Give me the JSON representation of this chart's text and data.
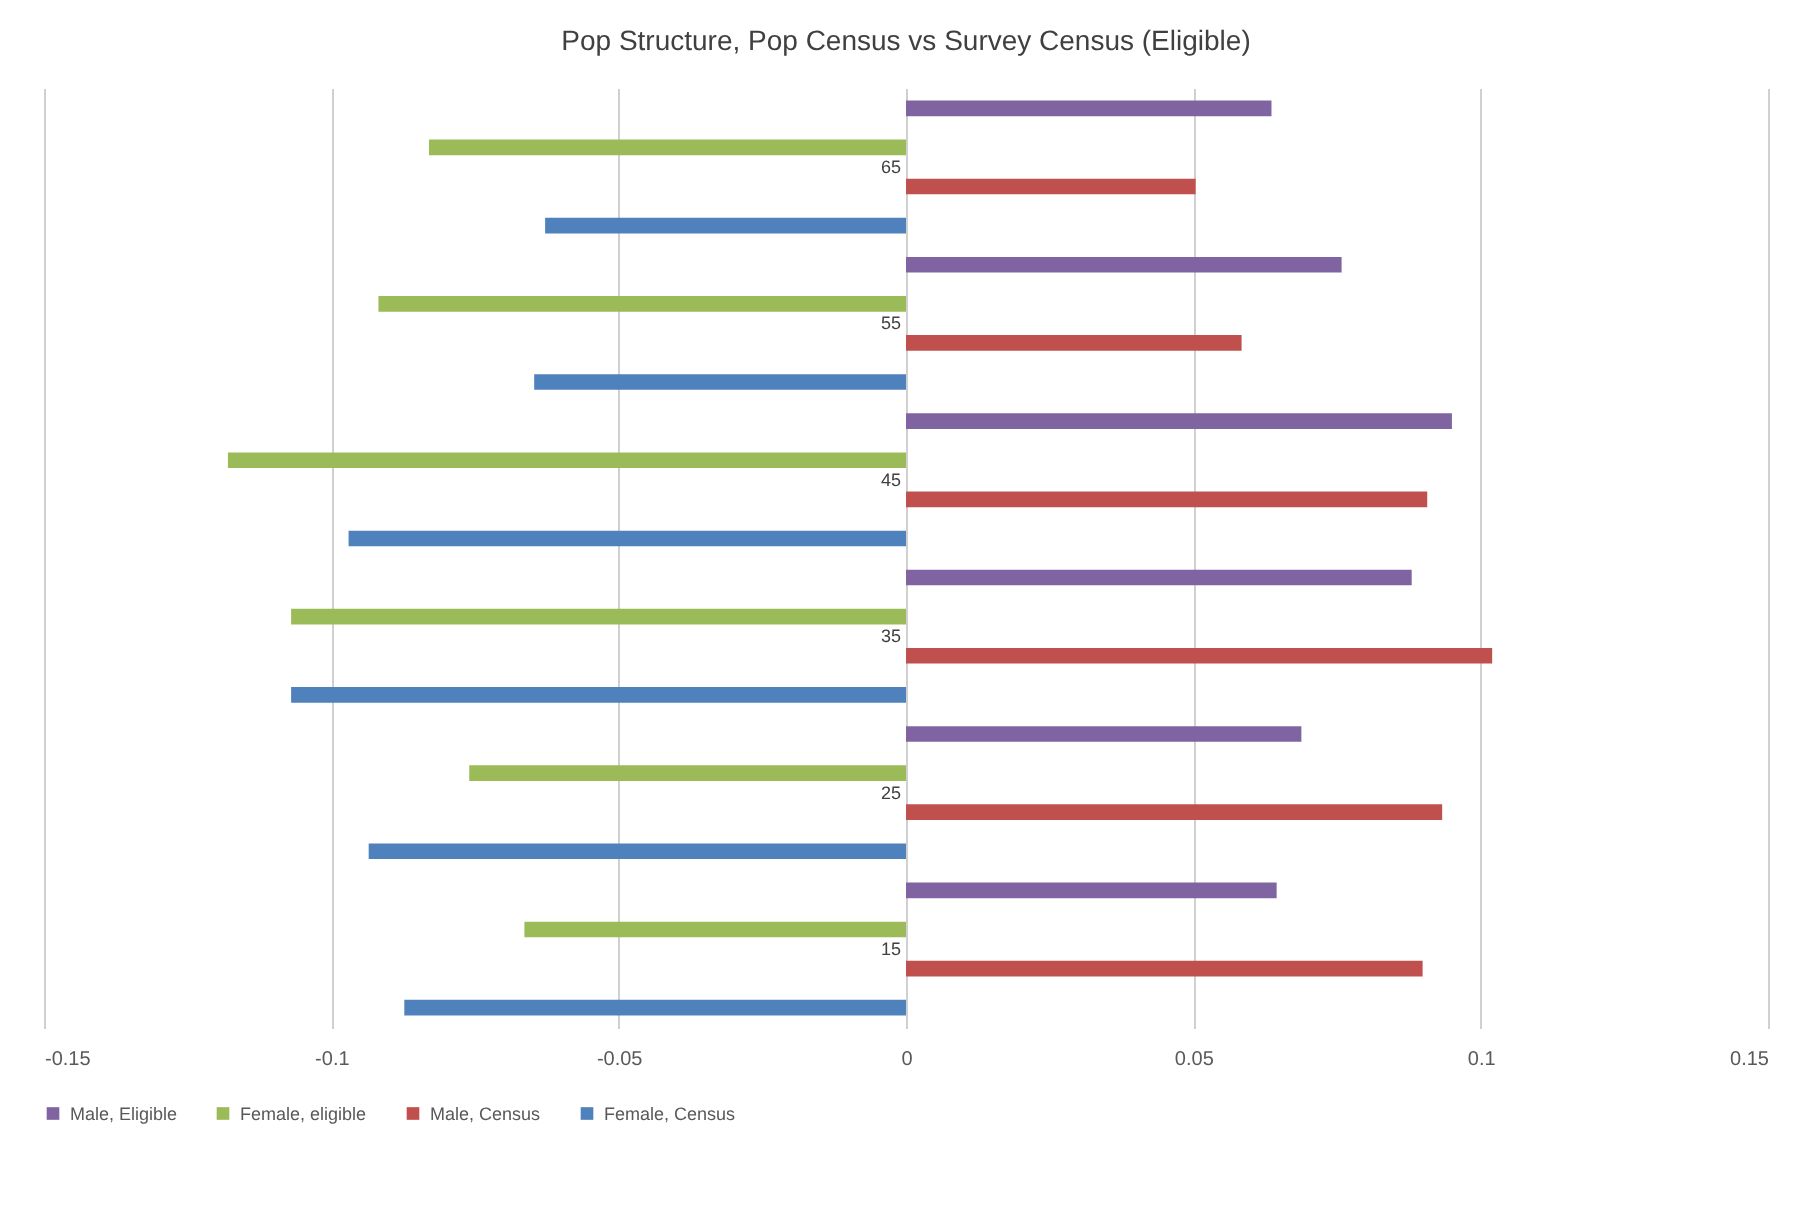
{
  "chart_data": {
    "type": "bar",
    "orientation": "horizontal",
    "title": "Pop Structure, Pop Census vs Survey Census (Eligible)",
    "categories": [
      "65",
      "55",
      "45",
      "35",
      "25",
      "15"
    ],
    "series": [
      {
        "name": "Male, Eligible",
        "color": "#8064a2",
        "values": [
          0.0636,
          0.0758,
          0.095,
          0.088,
          0.0688,
          0.0645
        ]
      },
      {
        "name": "Female, eligible",
        "color": "#9bbb59",
        "values": [
          -0.083,
          -0.0918,
          -0.118,
          -0.107,
          -0.076,
          -0.0664
        ]
      },
      {
        "name": "Male, Census",
        "color": "#c0504d",
        "values": [
          0.0504,
          0.0584,
          0.0907,
          0.102,
          0.0933,
          0.0899
        ]
      },
      {
        "name": "Female, Census",
        "color": "#4f81bd",
        "values": [
          -0.0628,
          -0.0647,
          -0.097,
          -0.107,
          -0.0935,
          -0.0873
        ]
      }
    ],
    "xlim": [
      -0.15,
      0.15
    ],
    "xticks": [
      -0.15,
      -0.1,
      -0.05,
      0,
      0.05,
      0.1,
      0.15
    ],
    "grid": "x",
    "legend": "bottom"
  }
}
